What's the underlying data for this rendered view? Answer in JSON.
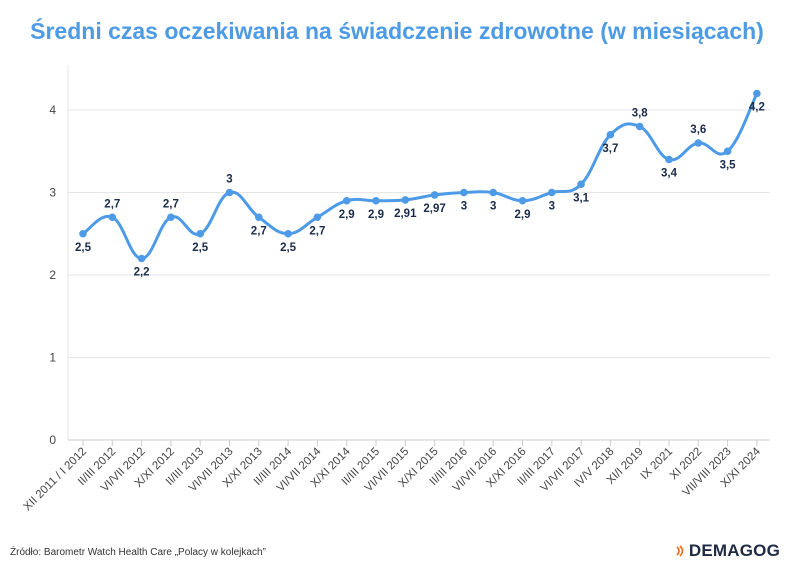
{
  "colors": {
    "accent": "#4d9be6",
    "brand": "#1f2a44",
    "brand_mark": "#e86a1f",
    "grid": "#e6e6e6",
    "axis_text": "#444444",
    "label_text": "#1a2b4a"
  },
  "chart_data": {
    "type": "line",
    "title": "Średni czas oczekiwania na świadczenie zdrowotne (w miesiącach)",
    "xlabel": "",
    "ylabel": "",
    "ylim": [
      0,
      4.5
    ],
    "yticks": [
      "0",
      "1",
      "2",
      "3",
      "4"
    ],
    "grid": true,
    "categories": [
      "XII 2011 / I 2012",
      "II/III 2012",
      "VI/VII 2012",
      "X/XI 2012",
      "II/III 2013",
      "VI/VII 2013",
      "X/XI 2013",
      "II/III 2014",
      "VI/VII 2014",
      "X/XI 2014",
      "II/III 2015",
      "VI/VII 2015",
      "X/XI 2015",
      "II/III 2016",
      "VI/VII 2016",
      "X/XI 2016",
      "II/III 2017",
      "VI/VII 2017",
      "IV/V 2018",
      "XI/I 2019",
      "IX 2021",
      "XI 2022",
      "VII/VIII 2023",
      "X/XI 2024"
    ],
    "values": [
      2.5,
      2.7,
      2.2,
      2.7,
      2.5,
      3,
      2.7,
      2.5,
      2.7,
      2.9,
      2.9,
      2.91,
      2.97,
      3,
      3,
      2.9,
      3,
      3.1,
      3.7,
      3.8,
      3.4,
      3.6,
      3.5,
      4.2
    ],
    "data_labels": [
      "2,5",
      "2,7",
      "2,2",
      "2,7",
      "2,5",
      "3",
      "2,7",
      "2,5",
      "2,7",
      "2,9",
      "2,9",
      "2,91",
      "2,97",
      "3",
      "3",
      "2,9",
      "3",
      "3,1",
      "3,7",
      "3,8",
      "3,4",
      "3,6",
      "3,5",
      "4,2"
    ]
  },
  "footer": {
    "source": "Źródło: Barometr Watch Health Care „Polacy w kolejkach”",
    "brand": "DEMAGOG",
    "brand_icon": "demagog-logo-icon"
  }
}
